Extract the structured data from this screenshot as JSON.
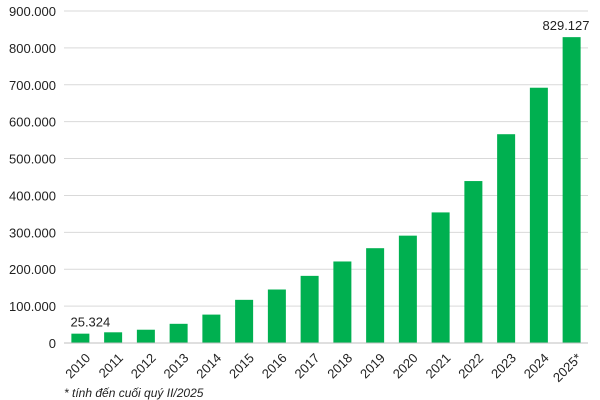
{
  "chart_data": {
    "type": "bar",
    "categories": [
      "2010",
      "2011",
      "2012",
      "2013",
      "2014",
      "2015",
      "2016",
      "2017",
      "2018",
      "2019",
      "2020",
      "2021",
      "2022",
      "2023",
      "2024",
      "2025*"
    ],
    "values": [
      25324,
      29000,
      36000,
      52000,
      77000,
      117000,
      145000,
      182000,
      221000,
      257000,
      291000,
      354000,
      439000,
      566000,
      692000,
      829127
    ],
    "data_labels": [
      {
        "index": 0,
        "text": "25.324"
      },
      {
        "index": 15,
        "text": "829.127"
      }
    ],
    "y_ticks": [
      {
        "value": 0,
        "label": "0"
      },
      {
        "value": 100000,
        "label": "100.000"
      },
      {
        "value": 200000,
        "label": "200.000"
      },
      {
        "value": 300000,
        "label": "300.000"
      },
      {
        "value": 400000,
        "label": "400.000"
      },
      {
        "value": 500000,
        "label": "500.000"
      },
      {
        "value": 600000,
        "label": "600.000"
      },
      {
        "value": 700000,
        "label": "700.000"
      },
      {
        "value": 800000,
        "label": "800.000"
      },
      {
        "value": 900000,
        "label": "900.000"
      }
    ],
    "ylim": [
      0,
      900000
    ],
    "grid": true,
    "legend": "none",
    "title": "",
    "xlabel": "",
    "ylabel": "",
    "bar_color": "#00b050",
    "grid_color": "#d9d9d9",
    "axis_color": "#bfbfbf"
  },
  "footnote": "* tính đến cuối quý II/2025"
}
